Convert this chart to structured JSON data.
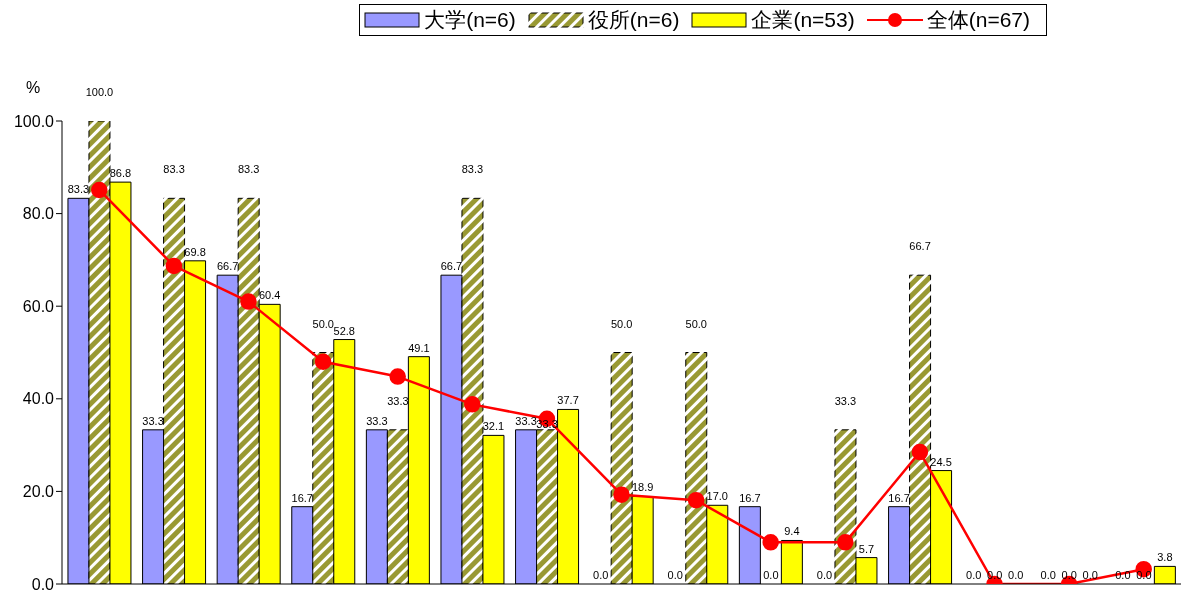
{
  "chart_data": {
    "type": "bar",
    "ylabel": "%",
    "categories": [
      null,
      null,
      null,
      null,
      null,
      null,
      null,
      null,
      null,
      null,
      null,
      null,
      null,
      null,
      null
    ],
    "series": [
      {
        "name": "大学(n=6)",
        "color": "#9999ff",
        "values": [
          83.3,
          33.3,
          66.7,
          16.7,
          33.3,
          66.7,
          33.3,
          0.0,
          0.0,
          16.7,
          0.0,
          16.7,
          0.0,
          0.0,
          0.0
        ],
        "value_labels": [
          "83.3",
          "33.3",
          "66.7",
          "16.7",
          "33.3",
          "66.7",
          "33.3",
          "0.0",
          "0.0",
          "16.7",
          "0.0",
          "16.7",
          "0.0",
          "0.0",
          "0.0"
        ]
      },
      {
        "name": "役所(n=6)",
        "color": "#999933",
        "values": [
          100.0,
          83.3,
          83.3,
          50.0,
          33.3,
          83.3,
          33.3,
          50.0,
          50.0,
          0.0,
          33.3,
          66.7,
          0.0,
          0.0,
          0.0
        ],
        "value_labels": [
          "100.0",
          "83.3",
          "83.3",
          "50.0",
          "33.3",
          "83.3",
          "33.3",
          "50.0",
          "50.0",
          "0.0",
          "33.3",
          "66.7",
          "0.0",
          "0.0",
          "0.0"
        ]
      },
      {
        "name": "企業(n=53)",
        "color": "#ffff00",
        "values": [
          86.8,
          69.8,
          60.4,
          52.8,
          49.1,
          32.1,
          37.7,
          18.9,
          17.0,
          9.4,
          5.7,
          24.5,
          0.0,
          0.0,
          3.8
        ],
        "value_labels": [
          "86.8",
          "69.8",
          "60.4",
          "52.8",
          "49.1",
          "32.1",
          "37.7",
          "18.9",
          "17.0",
          "9.4",
          "5.7",
          "24.5",
          "0.0",
          "0.0",
          "3.8"
        ]
      },
      {
        "name": "全体(n=67)",
        "type": "line",
        "color": "#ff0000",
        "marker": "circle",
        "values": [
          85.1,
          68.7,
          61.0,
          48.0,
          44.8,
          38.8,
          35.7,
          19.3,
          18.1,
          9.0,
          9.0,
          28.5,
          0.0,
          0.0,
          3.2
        ]
      }
    ],
    "ylim": [
      0,
      100
    ],
    "yticks": [
      {
        "value": 0,
        "label": "0.0"
      },
      {
        "value": 20,
        "label": "20.0"
      },
      {
        "value": 40,
        "label": "40.0"
      },
      {
        "value": 60,
        "label": "60.0"
      },
      {
        "value": 80,
        "label": "80.0"
      },
      {
        "value": 100,
        "label": "100.0"
      }
    ],
    "grid": false,
    "legend": "top right",
    "tick_labels": "y"
  }
}
